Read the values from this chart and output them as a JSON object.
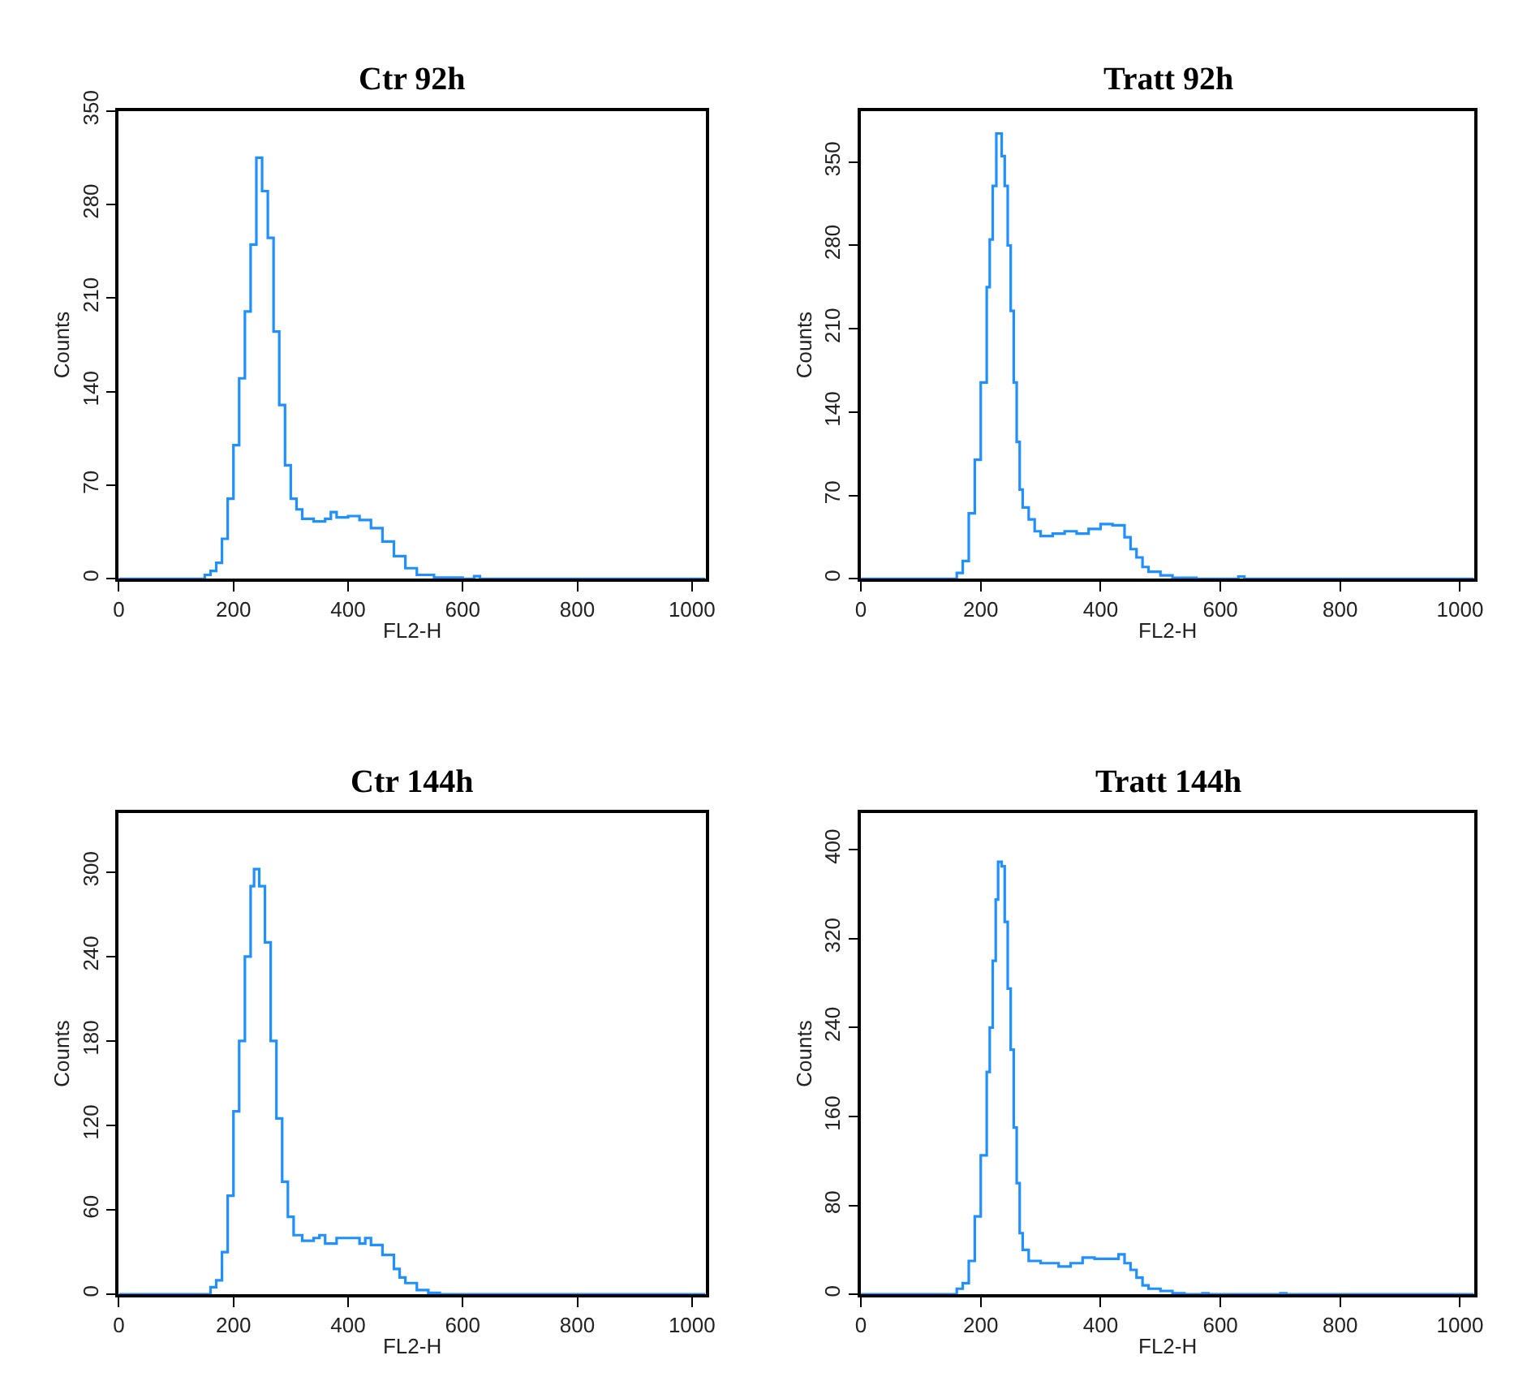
{
  "chart_data": [
    {
      "type": "step",
      "title": "Ctr 92h",
      "xlabel": "FL2-H",
      "ylabel": "Counts",
      "xlim": [
        0,
        1024
      ],
      "xticks": [
        0,
        200,
        400,
        600,
        800,
        1000
      ],
      "ylim": [
        0,
        350
      ],
      "yticks": [
        0,
        70,
        140,
        210,
        280,
        350
      ],
      "x": [
        0,
        140,
        150,
        160,
        170,
        180,
        190,
        200,
        210,
        220,
        230,
        240,
        250,
        260,
        270,
        280,
        290,
        300,
        310,
        320,
        340,
        360,
        370,
        380,
        400,
        420,
        440,
        460,
        480,
        500,
        520,
        550,
        600,
        620,
        630,
        1023
      ],
      "series": [
        {
          "color": "#1e90ff",
          "values": [
            0,
            0,
            3,
            6,
            12,
            30,
            60,
            100,
            150,
            200,
            250,
            315,
            290,
            255,
            185,
            130,
            85,
            60,
            52,
            45,
            43,
            45,
            50,
            46,
            47,
            44,
            38,
            28,
            17,
            8,
            3,
            1,
            0,
            2,
            0,
            0
          ]
        }
      ]
    },
    {
      "type": "step",
      "title": "Tratt 92h",
      "xlabel": "FL2-H",
      "ylabel": "Counts",
      "xlim": [
        0,
        1024
      ],
      "xticks": [
        0,
        200,
        400,
        600,
        800,
        1000
      ],
      "ylim": [
        0,
        393
      ],
      "yticks": [
        0,
        70,
        140,
        210,
        280,
        350
      ],
      "x": [
        0,
        140,
        160,
        170,
        180,
        190,
        200,
        210,
        215,
        220,
        226,
        235,
        240,
        245,
        250,
        255,
        260,
        265,
        270,
        280,
        290,
        300,
        320,
        340,
        360,
        380,
        400,
        420,
        430,
        440,
        450,
        460,
        470,
        480,
        500,
        520,
        540,
        560,
        630,
        640,
        1023
      ],
      "series": [
        {
          "color": "#1e90ff",
          "values": [
            0,
            0,
            5,
            15,
            55,
            100,
            165,
            245,
            285,
            330,
            374,
            355,
            330,
            280,
            225,
            165,
            115,
            75,
            60,
            50,
            40,
            36,
            38,
            40,
            38,
            42,
            46,
            45,
            45,
            35,
            25,
            18,
            10,
            6,
            3,
            1,
            1,
            0,
            2,
            0,
            0
          ]
        }
      ]
    },
    {
      "type": "step",
      "title": "Ctr 144h",
      "xlabel": "FL2-H",
      "ylabel": "Counts",
      "xlim": [
        0,
        1024
      ],
      "xticks": [
        0,
        200,
        400,
        600,
        800,
        1000
      ],
      "ylim": [
        0,
        342
      ],
      "yticks": [
        0,
        60,
        120,
        180,
        240,
        300
      ],
      "x": [
        0,
        140,
        160,
        170,
        180,
        190,
        200,
        210,
        220,
        230,
        236,
        245,
        255,
        265,
        275,
        285,
        295,
        305,
        320,
        340,
        350,
        360,
        380,
        400,
        420,
        430,
        440,
        460,
        480,
        490,
        500,
        520,
        540,
        560,
        1023
      ],
      "series": [
        {
          "color": "#1e90ff",
          "values": [
            0,
            0,
            5,
            10,
            30,
            70,
            130,
            180,
            240,
            290,
            302,
            290,
            250,
            180,
            125,
            80,
            55,
            42,
            38,
            40,
            42,
            36,
            40,
            40,
            36,
            40,
            35,
            28,
            18,
            12,
            8,
            3,
            1,
            0,
            0
          ]
        }
      ]
    },
    {
      "type": "step",
      "title": "Tratt 144h",
      "xlabel": "FL2-H",
      "ylabel": "Counts",
      "xlim": [
        0,
        1024
      ],
      "xticks": [
        0,
        200,
        400,
        600,
        800,
        1000
      ],
      "ylim": [
        0,
        433
      ],
      "yticks": [
        0,
        80,
        160,
        240,
        320,
        400
      ],
      "x": [
        0,
        140,
        160,
        170,
        180,
        190,
        200,
        210,
        215,
        220,
        225,
        229,
        235,
        240,
        245,
        250,
        255,
        260,
        265,
        270,
        280,
        300,
        330,
        350,
        370,
        390,
        410,
        430,
        440,
        450,
        460,
        470,
        480,
        500,
        520,
        540,
        570,
        580,
        700,
        710,
        1023
      ],
      "series": [
        {
          "color": "#1e90ff",
          "values": [
            0,
            0,
            5,
            10,
            30,
            70,
            125,
            200,
            240,
            300,
            355,
            389,
            385,
            335,
            275,
            220,
            150,
            100,
            55,
            40,
            30,
            28,
            25,
            28,
            33,
            32,
            32,
            36,
            28,
            22,
            15,
            8,
            5,
            3,
            1,
            0,
            1,
            0,
            1,
            0,
            0
          ]
        }
      ]
    }
  ]
}
